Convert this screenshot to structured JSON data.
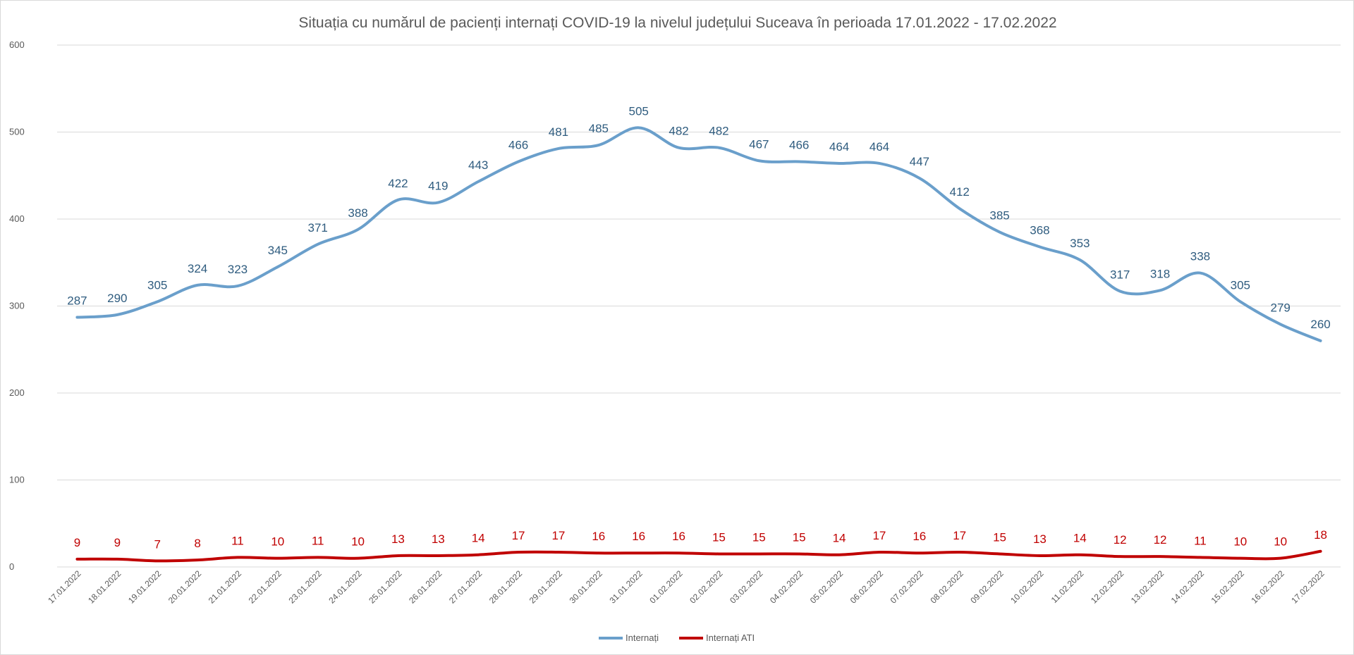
{
  "chart_data": {
    "type": "line",
    "title": "Situația cu numărul de pacienți internați COVID-19 la nivelul județului Suceava în perioada 17.01.2022 - 17.02.2022",
    "xlabel": "",
    "ylabel": "",
    "ylim": [
      0,
      600
    ],
    "yticks": [
      "0",
      "100",
      "200",
      "300",
      "400",
      "500",
      "600"
    ],
    "grid": true,
    "legend_position": "bottom",
    "categories": [
      "17.01.2022",
      "18.01.2022",
      "19.01.2022",
      "20.01.2022",
      "21.01.2022",
      "22.01.2022",
      "23.01.2022",
      "24.01.2022",
      "25.01.2022",
      "26.01.2022",
      "27.01.2022",
      "28.01.2022",
      "29.01.2022",
      "30.01.2022",
      "31.01.2022",
      "01.02.2022",
      "02.02.2022",
      "03.02.2022",
      "04.02.2022",
      "05.02.2022",
      "06.02.2022",
      "07.02.2022",
      "08.02.2022",
      "09.02.2022",
      "10.02.2022",
      "11.02.2022",
      "12.02.2022",
      "13.02.2022",
      "14.02.2022",
      "15.02.2022",
      "16.02.2022",
      "17.02.2022"
    ],
    "series": [
      {
        "name": "Internați",
        "color": "#6a9fcb",
        "label_color": "#2f5c7f",
        "values": [
          287,
          290,
          305,
          324,
          323,
          345,
          371,
          388,
          422,
          419,
          443,
          466,
          481,
          485,
          505,
          482,
          482,
          467,
          466,
          464,
          464,
          447,
          412,
          385,
          368,
          353,
          317,
          318,
          338,
          305,
          279,
          260
        ]
      },
      {
        "name": "Internați ATI",
        "color": "#c00000",
        "label_color": "#c00000",
        "values": [
          9,
          9,
          7,
          8,
          11,
          10,
          11,
          10,
          13,
          13,
          14,
          17,
          17,
          16,
          16,
          16,
          15,
          15,
          15,
          14,
          17,
          16,
          17,
          15,
          13,
          14,
          12,
          12,
          11,
          10,
          10,
          18
        ]
      }
    ]
  }
}
